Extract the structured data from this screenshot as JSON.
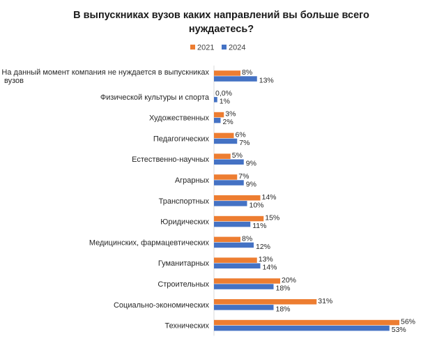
{
  "chart_data": {
    "type": "bar",
    "orientation": "horizontal",
    "title": "В выпускниках вузов каких направлений вы больше всего нуждаетесь?",
    "title_lines": [
      "В выпускниках вузов каких направлений вы больше всего",
      "нуждаетесь?"
    ],
    "categories": [
      "На данный момент компания не нуждается в выпускниках вузов",
      "Физической культуры и спорта",
      "Художественных",
      "Педагогических",
      "Естественно-научных",
      "Аграрных",
      "Транспортных",
      "Юридических",
      "Медицинских, фармацевтических",
      "Гуманитарных",
      "Строительных",
      "Социально-экономических",
      "Технических"
    ],
    "category_label_lines": [
      [
        "На данный момент компания не нуждается в выпускниках",
        "вузов"
      ],
      [
        "Физической культуры и спорта"
      ],
      [
        "Художественных"
      ],
      [
        "Педагогических"
      ],
      [
        "Естественно-научных"
      ],
      [
        "Аграрных"
      ],
      [
        "Транспортных"
      ],
      [
        "Юридических"
      ],
      [
        "Медицинских, фармацевтических"
      ],
      [
        "Гуманитарных"
      ],
      [
        "Строительных"
      ],
      [
        "Социально-экономических"
      ],
      [
        "Технических"
      ]
    ],
    "series": [
      {
        "name": "2021",
        "color": "#ED7D31",
        "values": [
          8,
          0,
          3,
          6,
          5,
          7,
          14,
          15,
          8,
          13,
          20,
          31,
          56
        ],
        "labels": [
          "8%",
          "0,0%",
          "3%",
          "6%",
          "5%",
          "7%",
          "14%",
          "15%",
          "8%",
          "13%",
          "20%",
          "31%",
          "56%"
        ]
      },
      {
        "name": "2024",
        "color": "#4472C4",
        "values": [
          13,
          1,
          2,
          7,
          9,
          9,
          10,
          11,
          12,
          14,
          18,
          18,
          53
        ],
        "labels": [
          "13%",
          "1%",
          "2%",
          "7%",
          "9%",
          "9%",
          "10%",
          "11%",
          "12%",
          "14%",
          "18%",
          "18%",
          "53%"
        ]
      }
    ],
    "xlim": [
      0,
      60
    ],
    "grid": false,
    "legend_position": "top-center",
    "xlabel": "",
    "ylabel": ""
  }
}
